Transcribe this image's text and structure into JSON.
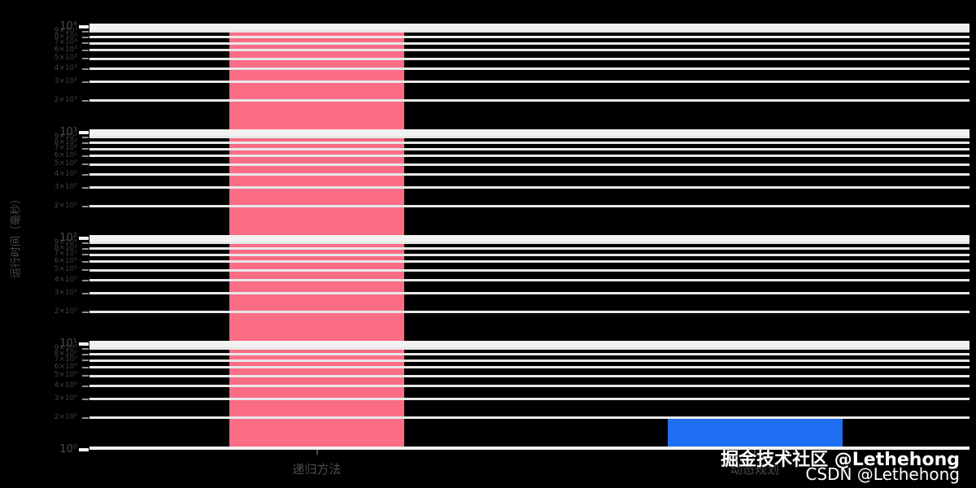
{
  "figure": {
    "background": "#000000"
  },
  "chart_data": {
    "type": "bar",
    "title": "",
    "categories": [
      "递归方法",
      "动态规划"
    ],
    "values": [
      10500,
      2
    ],
    "bar_colors": [
      "#fb6c85",
      "#1f6ff2"
    ],
    "ylabel": "运行时间（毫秒）",
    "xlabel": "",
    "yscale": "log",
    "ylim": [
      1,
      11000
    ],
    "yticks_major": [
      1,
      10,
      100,
      1000,
      10000
    ],
    "ytick_minor_multiples": [
      2,
      3,
      4,
      5,
      6,
      7,
      8,
      9
    ],
    "grid": true,
    "legend_position": "none",
    "gridline_color": "#f0f0f0",
    "tick_label_color": "#4a4a4a",
    "background": "#000000"
  },
  "watermark": {
    "line1": "掘金技术社区 @Lethehong",
    "line2": "CSDN @Lethehong"
  }
}
